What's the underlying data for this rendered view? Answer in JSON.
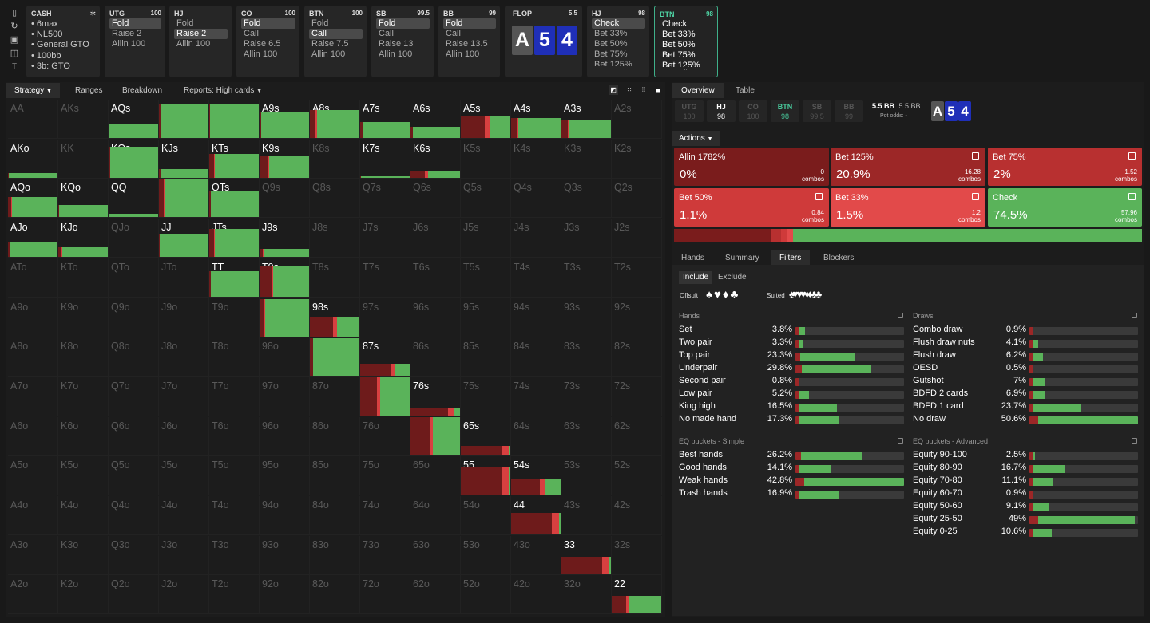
{
  "topbar": {
    "cash": {
      "title": "CASH",
      "items": [
        "6max",
        "NL500",
        "General GTO",
        "100bb",
        "3b: GTO"
      ]
    },
    "positions": [
      {
        "pos": "UTG",
        "stack": "100",
        "actions": [
          "Fold",
          "Raise 2",
          "Allin 100"
        ],
        "sel": 0
      },
      {
        "pos": "HJ",
        "stack": "",
        "actions": [
          "Fold",
          "Raise 2",
          "Allin 100"
        ],
        "sel": 1
      },
      {
        "pos": "CO",
        "stack": "100",
        "actions": [
          "Fold",
          "Call",
          "Raise 6.5",
          "Allin 100"
        ],
        "sel": 0
      },
      {
        "pos": "BTN",
        "stack": "100",
        "actions": [
          "Fold",
          "Call",
          "Raise 7.5",
          "Allin 100"
        ],
        "sel": 1
      },
      {
        "pos": "SB",
        "stack": "99.5",
        "actions": [
          "Fold",
          "Call",
          "Raise 13",
          "Allin 100"
        ],
        "sel": 0
      },
      {
        "pos": "BB",
        "stack": "99",
        "actions": [
          "Fold",
          "Call",
          "Raise 13.5",
          "Allin 100"
        ],
        "sel": 0
      }
    ],
    "flop": {
      "title": "FLOP",
      "pot": "5.5",
      "cards": [
        "A",
        "5",
        "4"
      ]
    },
    "hj_street": {
      "pos": "HJ",
      "stack": "98",
      "actions": [
        "Check",
        "Bet 33%",
        "Bet 50%",
        "Bet 75%",
        "Bet 125%"
      ],
      "more": "..."
    },
    "btn_street": {
      "pos": "BTN",
      "stack": "98",
      "actions": [
        "Check",
        "Bet 33%",
        "Bet 50%",
        "Bet 75%",
        "Bet 125%"
      ],
      "more": "..."
    }
  },
  "left_tabs": [
    "Strategy",
    "Ranges",
    "Breakdown",
    "Reports: High cards"
  ],
  "grid": {
    "ranks": [
      "A",
      "K",
      "Q",
      "J",
      "T",
      "9",
      "8",
      "7",
      "6",
      "5",
      "4",
      "3",
      "2"
    ],
    "in_range": [
      "AQs",
      "AJs",
      "ATs",
      "A9s",
      "A8s",
      "A7s",
      "A6s",
      "A5s",
      "A4s",
      "A3s",
      "AKo",
      "KQs",
      "KJs",
      "KTs",
      "K9s",
      "K7s",
      "K6s",
      "AQo",
      "KQo",
      "QQ",
      "QJs",
      "QTs",
      "AJo",
      "KJo",
      "JJ",
      "JTs",
      "J9s",
      "TT",
      "T9s",
      "99",
      "98s",
      "88",
      "87s",
      "77",
      "76s",
      "66",
      "65s",
      "55",
      "54s",
      "44",
      "33",
      "22"
    ]
  },
  "right_tabs": {
    "main": [
      "Overview",
      "Table"
    ],
    "sub": [
      "Hands",
      "Summary",
      "Filters",
      "Blockers"
    ],
    "filter": [
      "Include",
      "Exclude"
    ]
  },
  "positions_bar": [
    {
      "pos": "UTG",
      "stack": "100"
    },
    {
      "pos": "HJ",
      "stack": "98"
    },
    {
      "pos": "CO",
      "stack": "100"
    },
    {
      "pos": "BTN",
      "stack": "98"
    },
    {
      "pos": "SB",
      "stack": "99.5"
    },
    {
      "pos": "BB",
      "stack": "99"
    }
  ],
  "pot": {
    "a": "5.5 BB",
    "b": "5.5 BB",
    "label": "Pot odds:",
    "odds": "-"
  },
  "actions_label": "Actions",
  "actions": [
    {
      "name": "Allin 1782%",
      "pct": "0%",
      "combos": "0",
      "unit": "combos",
      "color": "#7a1c1c"
    },
    {
      "name": "Bet 125%",
      "pct": "20.9%",
      "combos": "16.28",
      "unit": "combos",
      "color": "#9c2727"
    },
    {
      "name": "Bet 75%",
      "pct": "2%",
      "combos": "1.52",
      "unit": "combos",
      "color": "#b83030"
    },
    {
      "name": "Bet 50%",
      "pct": "1.1%",
      "combos": "0.84",
      "unit": "combos",
      "color": "#cf3a3a"
    },
    {
      "name": "Bet 33%",
      "pct": "1.5%",
      "combos": "1.2",
      "unit": "combos",
      "color": "#e24a4a"
    },
    {
      "name": "Check",
      "pct": "74.5%",
      "combos": "57.96",
      "unit": "combos",
      "color": "#5ab35a"
    }
  ],
  "suits_labels": {
    "offsuit": "Offsuit",
    "suited": "Suited",
    "suit_glyphs": [
      "♠",
      "♥",
      "♦",
      "♣"
    ],
    "suited_glyphs": [
      "♠♥",
      "♥♥",
      "♦♦",
      "♣♣"
    ]
  },
  "hands": {
    "title": "Hands",
    "rows": [
      [
        "Set",
        "3.8%",
        3.8
      ],
      [
        "Two pair",
        "3.3%",
        3.3
      ],
      [
        "Top pair",
        "23.3%",
        23.3
      ],
      [
        "Underpair",
        "29.8%",
        29.8
      ],
      [
        "Second pair",
        "0.8%",
        0.8
      ],
      [
        "Low pair",
        "5.2%",
        5.2
      ],
      [
        "King high",
        "16.5%",
        16.5
      ],
      [
        "No made hand",
        "17.3%",
        17.3
      ]
    ]
  },
  "draws": {
    "title": "Draws",
    "rows": [
      [
        "Combo draw",
        "0.9%",
        0.9
      ],
      [
        "Flush draw nuts",
        "4.1%",
        4.1
      ],
      [
        "Flush draw",
        "6.2%",
        6.2
      ],
      [
        "OESD",
        "0.5%",
        0.5
      ],
      [
        "Gutshot",
        "7%",
        7
      ],
      [
        "BDFD 2 cards",
        "6.9%",
        6.9
      ],
      [
        "BDFD 1 card",
        "23.7%",
        23.7
      ],
      [
        "No draw",
        "50.6%",
        50.6
      ]
    ]
  },
  "eqs": {
    "title": "EQ buckets - Simple",
    "rows": [
      [
        "Best hands",
        "26.2%",
        26.2
      ],
      [
        "Good hands",
        "14.1%",
        14.1
      ],
      [
        "Weak hands",
        "42.8%",
        42.8
      ],
      [
        "Trash hands",
        "16.9%",
        16.9
      ]
    ]
  },
  "eqa": {
    "title": "EQ buckets - Advanced",
    "rows": [
      [
        "Equity 90-100",
        "2.5%",
        2.5
      ],
      [
        "Equity 80-90",
        "16.7%",
        16.7
      ],
      [
        "Equity 70-80",
        "11.1%",
        11.1
      ],
      [
        "Equity 60-70",
        "0.9%",
        0.9
      ],
      [
        "Equity 50-60",
        "9.1%",
        9.1
      ],
      [
        "Equity 25-50",
        "49%",
        49
      ],
      [
        "Equity 0-25",
        "10.6%",
        10.6
      ]
    ]
  },
  "colors": {
    "green": "#5ab35a",
    "red": "#9c2727",
    "darkred": "#6e1b1b",
    "track": "#3a3a3a",
    "accent": "#3fb08a",
    "blue": "#2233cc"
  }
}
